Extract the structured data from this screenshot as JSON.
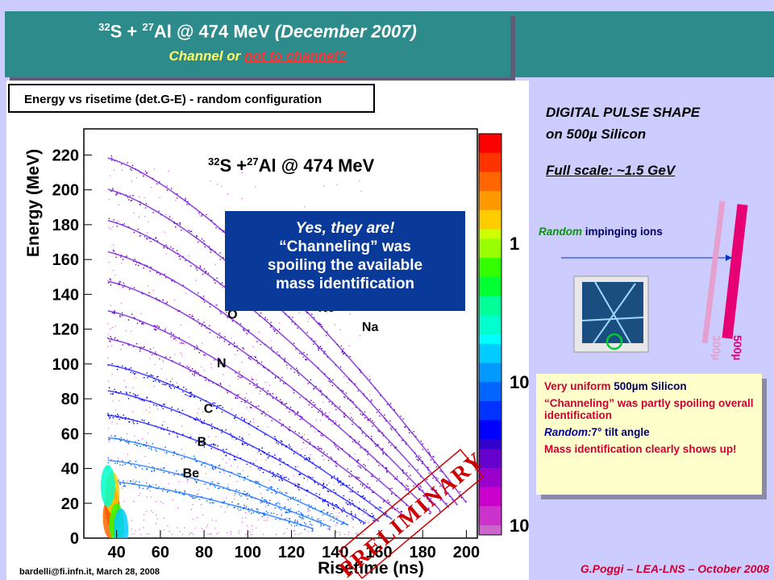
{
  "banner": {
    "title_prefix": "32",
    "title_element": "S + ",
    "title_mass2": "27",
    "title_rest": "Al @ 474 MeV",
    "title_date": "(December 2007)",
    "subtitle_prefix": "Channel or ",
    "subtitle_link": "not to channel?"
  },
  "plot_header": "Energy vs risetime (det.G-E) - random configuration",
  "plot_credit": "bardelli@fi.infn.it, March 28, 2008",
  "footer": "G.Poggi – LEA-LNS – October 2008",
  "preliminary": "PRELIMINARY",
  "callout": {
    "line1": "Yes, they are!",
    "line2": "“Channeling” was",
    "line3": "spoiling the available",
    "line4": "mass identification"
  },
  "right": {
    "heading1": "DIGITAL PULSE SHAPE",
    "heading2": "on 500µ Silicon",
    "fullscale": "Full scale: ~1.5 GeV",
    "random_word": "Random",
    "random_rest": " impinging ions",
    "label_300": "300µ",
    "label_500": "500µ"
  },
  "info": {
    "l1_a": "Very uniform ",
    "l1_b": "500µm Silicon",
    "l2": "“Channeling” was partly spoiling overall identification",
    "l3_a": "Random:",
    "l3_b": "7° tilt angle",
    "l4": "Mass identification clearly shows up!"
  },
  "chart_data": {
    "type": "heatmap",
    "title": "",
    "inner_title": "32S +27Al @ 474 MeV",
    "xlabel": "Risetime (ns)",
    "ylabel": "Energy (MeV)",
    "xlim": [
      25,
      205
    ],
    "ylim": [
      0,
      235
    ],
    "x_ticks": [
      40,
      60,
      80,
      100,
      120,
      140,
      160,
      180,
      200
    ],
    "y_ticks": [
      0,
      20,
      40,
      60,
      80,
      100,
      120,
      140,
      160,
      180,
      200,
      220
    ],
    "colorbar_ticks": [
      "1",
      "10",
      "10"
    ],
    "colors": [
      "#ff0000",
      "#ff6600",
      "#ffcc00",
      "#ccff00",
      "#33ff00",
      "#00ff66",
      "#00ffcc",
      "#00ccff",
      "#0066ff",
      "#0000ff",
      "#6600cc",
      "#cc00cc"
    ],
    "element_labels": [
      {
        "name": "Be",
        "x": 74,
        "y": 35
      },
      {
        "name": "B",
        "x": 79,
        "y": 53
      },
      {
        "name": "C",
        "x": 82,
        "y": 72
      },
      {
        "name": "N",
        "x": 88,
        "y": 98
      },
      {
        "name": "O",
        "x": 93,
        "y": 126
      },
      {
        "name": "Ne",
        "x": 136,
        "y": 130
      },
      {
        "name": "Na",
        "x": 156,
        "y": 119
      }
    ],
    "loci_peak_energy": [
      30,
      42,
      55,
      68,
      82,
      97,
      112,
      128,
      145,
      162,
      180,
      198,
      216
    ],
    "loci_end_risetime": [
      130,
      138,
      146,
      154,
      160,
      166,
      172,
      178,
      184,
      188,
      192,
      196,
      200
    ]
  }
}
